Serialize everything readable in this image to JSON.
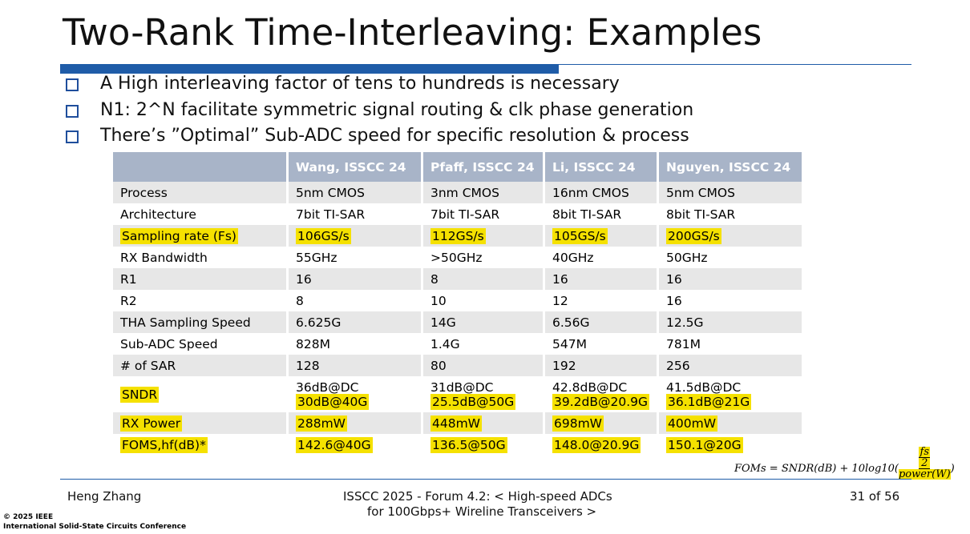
{
  "header": {
    "title": "Two-Rank Time-Interleaving: Examples"
  },
  "bullets": [
    "A High interleaving factor of tens to hundreds is necessary",
    "N1: 2^N facilitate symmetric signal routing & clk phase generation",
    "There’s ”Optimal” Sub-ADC speed for specific resolution & process"
  ],
  "table": {
    "columns": [
      "Wang, ISSCC 24",
      "Pfaff, ISSCC 24",
      "Li, ISSCC 24",
      "Nguyen, ISSCC 24"
    ],
    "rows": [
      {
        "cells": [
          "Process",
          "5nm CMOS",
          "3nm CMOS",
          "16nm CMOS",
          "5nm CMOS"
        ]
      },
      {
        "cells": [
          "Architecture",
          "7bit TI-SAR",
          "7bit TI-SAR",
          "8bit TI-SAR",
          "8bit TI-SAR"
        ]
      },
      {
        "cells": [
          "Sampling rate (Fs)",
          "106GS/s",
          "112GS/s",
          "105GS/s",
          "200GS/s"
        ],
        "highlight": true
      },
      {
        "cells": [
          "RX Bandwidth",
          "55GHz",
          ">50GHz",
          "40GHz",
          "50GHz"
        ]
      },
      {
        "cells": [
          "R1",
          "16",
          "8",
          "16",
          "16"
        ]
      },
      {
        "cells": [
          "R2",
          "8",
          "10",
          "12",
          "16"
        ]
      },
      {
        "cells": [
          "THA Sampling Speed",
          "6.625G",
          "14G",
          "6.56G",
          "12.5G"
        ]
      },
      {
        "cells": [
          "Sub-ADC Speed",
          "828M",
          "1.4G",
          "547M",
          "781M"
        ]
      },
      {
        "cells": [
          "# of SAR",
          "128",
          "80",
          "192",
          "256"
        ]
      },
      {
        "cells": [
          "SNDR",
          [
            "36dB@DC",
            "30dB@40G"
          ],
          [
            "31dB@DC",
            "25.5dB@50G"
          ],
          [
            "42.8dB@DC",
            "39.2dB@20.9G"
          ],
          [
            "41.5dB@DC",
            "36.1dB@21G"
          ]
        ],
        "highlight": true
      },
      {
        "cells": [
          "RX Power",
          "288mW",
          "448mW",
          "698mW",
          "400mW"
        ],
        "highlight": true
      },
      {
        "cells": [
          "FOMS,hf(dB)*",
          "142.6@40G",
          "136.5@50G",
          "148.0@20.9G",
          "150.1@20G"
        ],
        "highlight": true
      }
    ]
  },
  "formula": {
    "lhs": "FOMs = SNDR(dB) + 10log10(",
    "numerator": "fs",
    "half": "2",
    "denominator": "power(W)",
    "close": ")"
  },
  "footer": {
    "author": "Heng Zhang",
    "forum": [
      "ISSCC 2025 - Forum 4.2: < High-speed ADCs",
      "for 100Gbps+ Wireline Transceivers >"
    ],
    "page": "31 of 56",
    "copyright": [
      "© 2025 IEEE",
      "International Solid-State Circuits Conference"
    ]
  }
}
